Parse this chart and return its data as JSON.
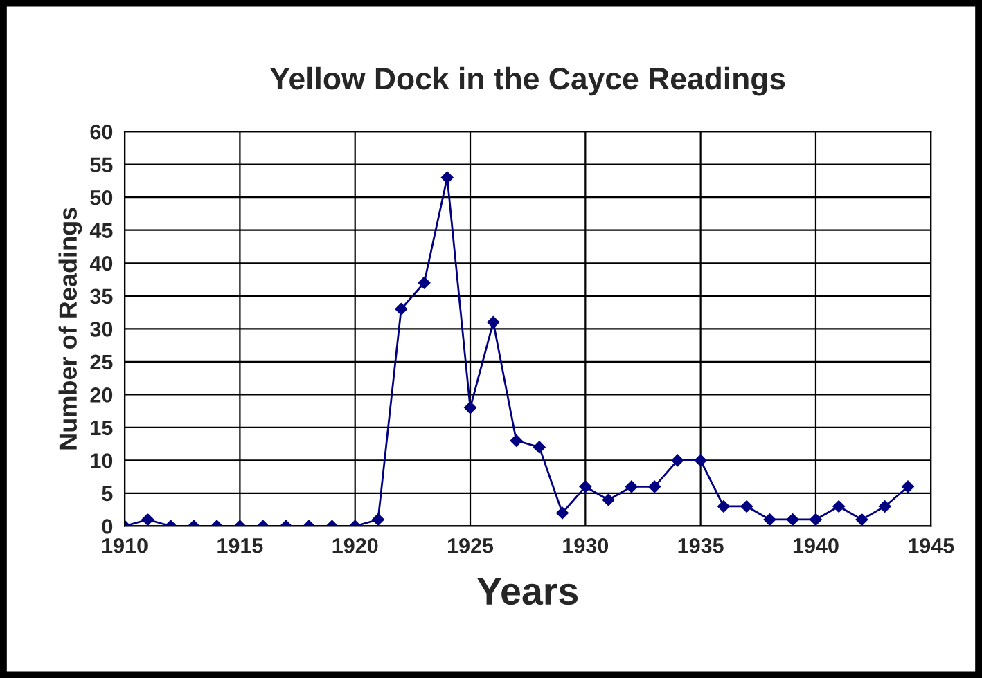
{
  "chart_data": {
    "type": "line",
    "title": "Yellow Dock in the Cayce Readings",
    "xlabel": "Years",
    "ylabel": "Number of Readings",
    "x": [
      1910,
      1911,
      1912,
      1913,
      1914,
      1915,
      1916,
      1917,
      1918,
      1919,
      1920,
      1921,
      1922,
      1923,
      1924,
      1925,
      1926,
      1927,
      1928,
      1929,
      1930,
      1931,
      1932,
      1933,
      1934,
      1935,
      1936,
      1937,
      1938,
      1939,
      1940,
      1941,
      1942,
      1943,
      1944
    ],
    "series": [
      {
        "color": "#000080",
        "values": [
          0,
          1,
          0,
          0,
          0,
          0,
          0,
          0,
          0,
          0,
          0,
          1,
          33,
          37,
          53,
          18,
          31,
          13,
          12,
          2,
          6,
          4,
          6,
          6,
          10,
          10,
          3,
          3,
          1,
          1,
          1,
          3,
          1,
          3,
          6
        ]
      }
    ],
    "xlim": [
      1910,
      1945
    ],
    "xticks": [
      1910,
      1915,
      1920,
      1925,
      1930,
      1935,
      1940,
      1945
    ],
    "ylim": [
      0,
      60
    ],
    "yticks": [
      0,
      5,
      10,
      15,
      20,
      25,
      30,
      35,
      40,
      45,
      50,
      55,
      60
    ],
    "grid": true,
    "marker": "diamond",
    "line_style": "solid"
  }
}
